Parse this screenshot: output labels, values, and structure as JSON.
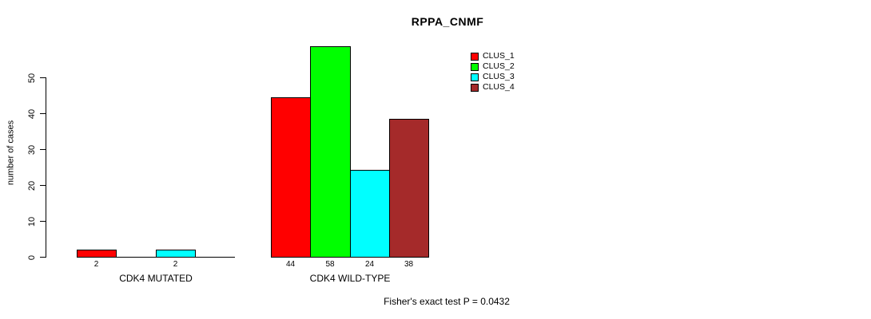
{
  "chart_data": {
    "type": "bar",
    "title": "RPPA_CNMF",
    "ylabel": "number of cases",
    "xlabel": "",
    "categories": [
      "CDK4 MUTATED",
      "CDK4 WILD-TYPE"
    ],
    "series": [
      {
        "name": "CLUS_1",
        "color": "#ff0000",
        "values": [
          2,
          44
        ]
      },
      {
        "name": "CLUS_2",
        "color": "#00ff00",
        "values": [
          0,
          58
        ]
      },
      {
        "name": "CLUS_3",
        "color": "#00ffff",
        "values": [
          2,
          24
        ]
      },
      {
        "name": "CLUS_4",
        "color": "#a52a2a",
        "values": [
          0,
          38
        ]
      }
    ],
    "show_bar_values": true,
    "yticks": [
      0,
      10,
      20,
      30,
      40,
      50
    ],
    "ylim": [
      0,
      58
    ],
    "grid": false,
    "legend_position": "top-right",
    "annotation": "Fisher's exact test P = 0.0432",
    "axis_color": "#000000",
    "background_color": "#ffffff"
  }
}
